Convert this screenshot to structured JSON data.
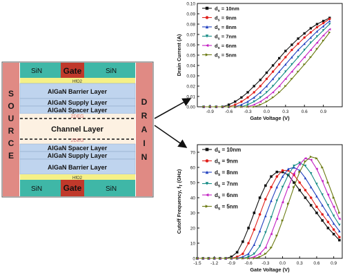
{
  "device": {
    "source_label": "SOURCE",
    "drain_label": "DRAIN",
    "gate_label": "Gate",
    "sin_label": "SiN",
    "hfo2_label": "HfO2",
    "layers_top": [
      "AlGaN Barrier Layer",
      "AlGaN Supply Layer",
      "AlGaN Spacer Layer"
    ],
    "twodeg_label": "2DEG",
    "channel_label": "Channel Layer",
    "layers_bottom": [
      "AlGaN Spacer Layer",
      "AlGaN Supply Layer",
      "AlGaN Barrier Layer"
    ],
    "colors": {
      "side": "#e08a84",
      "sin": "#3fb7a7",
      "gate": "#c0392b",
      "hfo2": "#f5f087",
      "layer": "#bfd4ee",
      "channel": "#fdf1e2"
    }
  },
  "chart_data": [
    {
      "type": "line",
      "title": "",
      "xlabel": "Gate Voltage (V)",
      "ylabel": "Drain Current (A)",
      "xlim": [
        -1.1,
        1.2
      ],
      "ylim": [
        0.0,
        0.1
      ],
      "x_ticks": [
        "-0.9",
        "-0.6",
        "-0.3",
        "0.0",
        "0.3",
        "0.6",
        "0.9"
      ],
      "y_ticks": [
        "0.00",
        "0.01",
        "0.02",
        "0.03",
        "0.04",
        "0.05",
        "0.06",
        "0.07",
        "0.08",
        "0.09",
        "0.10"
      ],
      "legend_position": "top-left",
      "x": [
        -1.0,
        -0.9,
        -0.8,
        -0.7,
        -0.6,
        -0.5,
        -0.4,
        -0.3,
        -0.2,
        -0.1,
        0.0,
        0.1,
        0.2,
        0.3,
        0.4,
        0.5,
        0.6,
        0.7,
        0.8,
        0.9,
        1.0
      ],
      "series": [
        {
          "name": "d",
          "subscript": "s",
          "suffix": " = 10nm",
          "color": "#111111",
          "marker": "square",
          "values": [
            0.0,
            0.0,
            0.0,
            0.0,
            0.002,
            0.005,
            0.009,
            0.014,
            0.02,
            0.026,
            0.033,
            0.04,
            0.047,
            0.054,
            0.06,
            0.066,
            0.071,
            0.076,
            0.08,
            0.083,
            0.086
          ]
        },
        {
          "name": "d",
          "subscript": "s",
          "suffix": " = 9nm",
          "color": "#e0201b",
          "marker": "circle",
          "values": [
            0.0,
            0.0,
            0.0,
            0.0,
            0.0,
            0.002,
            0.005,
            0.009,
            0.014,
            0.02,
            0.027,
            0.034,
            0.041,
            0.048,
            0.055,
            0.061,
            0.067,
            0.072,
            0.077,
            0.081,
            0.085
          ]
        },
        {
          "name": "d",
          "subscript": "s",
          "suffix": " = 8nm",
          "color": "#1f3fbf",
          "marker": "triangle-up",
          "values": [
            0.0,
            0.0,
            0.0,
            0.0,
            0.0,
            0.0,
            0.002,
            0.005,
            0.009,
            0.014,
            0.02,
            0.027,
            0.034,
            0.041,
            0.048,
            0.055,
            0.061,
            0.067,
            0.073,
            0.078,
            0.083
          ]
        },
        {
          "name": "d",
          "subscript": "s",
          "suffix": " = 7nm",
          "color": "#138a84",
          "marker": "triangle-down",
          "values": [
            0.0,
            0.0,
            0.0,
            0.0,
            0.0,
            0.0,
            0.0,
            0.002,
            0.005,
            0.009,
            0.014,
            0.02,
            0.027,
            0.034,
            0.041,
            0.048,
            0.055,
            0.062,
            0.068,
            0.074,
            0.08
          ]
        },
        {
          "name": "d",
          "subscript": "s",
          "suffix": " = 6nm",
          "color": "#c21fc2",
          "marker": "triangle-left",
          "values": [
            0.0,
            0.0,
            0.0,
            0.0,
            0.0,
            0.0,
            0.0,
            0.0,
            0.002,
            0.005,
            0.009,
            0.014,
            0.02,
            0.027,
            0.034,
            0.041,
            0.048,
            0.055,
            0.062,
            0.069,
            0.075
          ]
        },
        {
          "name": "d",
          "subscript": "s",
          "suffix": " = 5nm",
          "color": "#6b7a12",
          "marker": "triangle-right",
          "values": [
            0.0,
            0.0,
            0.0,
            0.0,
            0.0,
            0.0,
            0.0,
            0.0,
            0.0,
            0.002,
            0.005,
            0.009,
            0.014,
            0.02,
            0.027,
            0.034,
            0.041,
            0.048,
            0.056,
            0.064,
            0.072
          ]
        }
      ]
    },
    {
      "type": "line",
      "title": "",
      "xlabel": "Gate Voltage (V)",
      "ylabel": "Cutoff Frequency, f",
      "ylabel_subscript": "T",
      "ylabel_unit": " (GHz)",
      "xlim": [
        -1.5,
        1.05
      ],
      "ylim": [
        0,
        75
      ],
      "x_ticks": [
        "-1.5",
        "-1.2",
        "-0.9",
        "-0.6",
        "-0.3",
        "0.0",
        "0.3",
        "0.6",
        "0.9"
      ],
      "y_ticks": [
        "0",
        "10",
        "20",
        "30",
        "40",
        "50",
        "60",
        "70"
      ],
      "legend_position": "top-left",
      "x": [
        -1.5,
        -1.4,
        -1.3,
        -1.2,
        -1.1,
        -1.0,
        -0.9,
        -0.8,
        -0.7,
        -0.6,
        -0.5,
        -0.4,
        -0.3,
        -0.2,
        -0.1,
        0.0,
        0.1,
        0.2,
        0.3,
        0.4,
        0.5,
        0.6,
        0.7,
        0.8,
        0.9,
        1.0
      ],
      "series": [
        {
          "name": "d",
          "subscript": "s",
          "suffix": " = 10nm",
          "color": "#111111",
          "marker": "square",
          "values": [
            0,
            0,
            0,
            0,
            0,
            0,
            1,
            4,
            11,
            20,
            30,
            40,
            48,
            54,
            57,
            57,
            55,
            50,
            45,
            40,
            35,
            30,
            25,
            20,
            16,
            12
          ]
        },
        {
          "name": "d",
          "subscript": "s",
          "suffix": " = 9nm",
          "color": "#e0201b",
          "marker": "circle",
          "values": [
            0,
            0,
            0,
            0,
            0,
            0,
            0,
            1,
            3,
            10,
            19,
            29,
            39,
            47,
            54,
            58,
            58,
            55,
            50,
            45,
            40,
            34,
            29,
            24,
            19,
            14
          ]
        },
        {
          "name": "d",
          "subscript": "s",
          "suffix": " = 8nm",
          "color": "#1f3fbf",
          "marker": "triangle-up",
          "values": [
            0,
            0,
            0,
            0,
            0,
            0,
            0,
            0,
            1,
            3,
            9,
            18,
            28,
            38,
            47,
            54,
            59,
            60,
            58,
            53,
            47,
            41,
            35,
            29,
            23,
            18
          ]
        },
        {
          "name": "d",
          "subscript": "s",
          "suffix": " = 7nm",
          "color": "#138a84",
          "marker": "triangle-down",
          "values": [
            0,
            0,
            0,
            0,
            0,
            0,
            0,
            0,
            0,
            1,
            3,
            8,
            17,
            27,
            38,
            47,
            55,
            61,
            63,
            61,
            56,
            49,
            42,
            35,
            28,
            22
          ]
        },
        {
          "name": "d",
          "subscript": "s",
          "suffix": " = 6nm",
          "color": "#c21fc2",
          "marker": "triangle-left",
          "values": [
            0,
            0,
            0,
            0,
            0,
            0,
            0,
            0,
            0,
            0,
            1,
            3,
            7,
            16,
            26,
            37,
            47,
            56,
            62,
            66,
            65,
            59,
            51,
            42,
            34,
            26
          ]
        },
        {
          "name": "d",
          "subscript": "s",
          "suffix": " = 5nm",
          "color": "#6b7a12",
          "marker": "triangle-right",
          "values": [
            0,
            0,
            0,
            0,
            0,
            0,
            0,
            0,
            0,
            0,
            0,
            1,
            3,
            7,
            15,
            25,
            36,
            47,
            57,
            64,
            67,
            66,
            60,
            50,
            40,
            30
          ]
        }
      ]
    }
  ]
}
